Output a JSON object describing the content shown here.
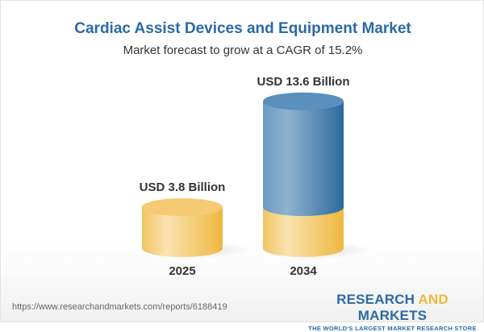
{
  "chart_data": {
    "type": "bar",
    "style": "3d-cylinder",
    "title": "Cardiac Assist Devices and Equipment Market",
    "subtitle": "Market forecast to grow at a CAGR of 15.2%",
    "categories": [
      "2025",
      "2034"
    ],
    "values": [
      3.8,
      13.6
    ],
    "unit": "USD Billion",
    "data_labels": [
      "USD 3.8 Billion",
      "USD 13.6 Billion"
    ],
    "colors": {
      "base": "#f2c25e",
      "growth": "#4a82b4"
    },
    "grid": false
  },
  "footer": {
    "url": "https://www.researchandmarkets.com/reports/6188419",
    "logo_word1": "RESEARCH ",
    "logo_word2": "AND",
    "logo_word3": " MARKETS",
    "logo_tagline": "THE WORLD'S LARGEST MARKET RESEARCH STORE"
  }
}
